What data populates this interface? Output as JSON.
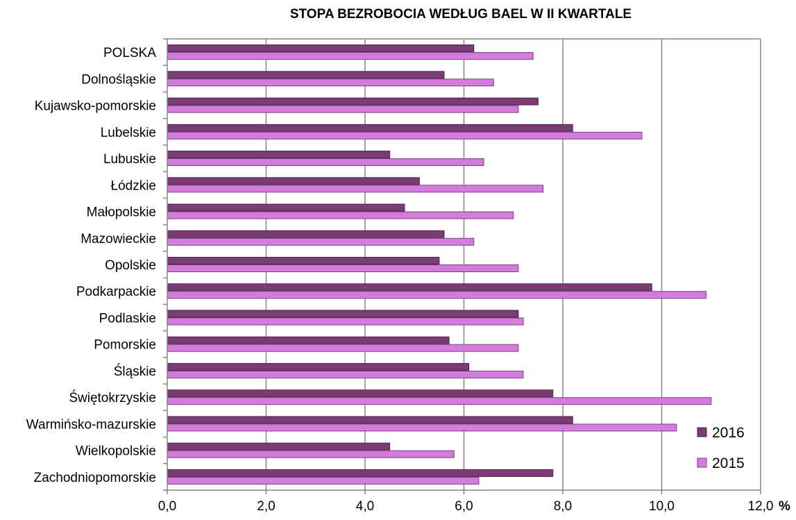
{
  "chart_data": {
    "type": "bar",
    "orientation": "horizontal",
    "title": "STOPA BEZROBOCIA WEDŁUG BAEL W II KWARTALE",
    "xlabel": "%",
    "ylabel": "",
    "xlim": [
      0,
      12
    ],
    "x_ticks": [
      "0,0",
      "2,0",
      "4,0",
      "6,0",
      "8,0",
      "10,0",
      "12,0"
    ],
    "grid": "vertical",
    "legend_position": "bottom-right",
    "categories": [
      "POLSKA",
      "Dolnośląskie",
      "Kujawsko-pomorskie",
      "Lubelskie",
      "Lubuskie",
      "Łódzkie",
      "Małopolskie",
      "Mazowieckie",
      "Opolskie",
      "Podkarpackie",
      "Podlaskie",
      "Pomorskie",
      "Śląskie",
      "Świętokrzyskie",
      "Warmińsko-mazurskie",
      "Wielkopolskie",
      "Zachodniopomorskie"
    ],
    "series": [
      {
        "name": "2016",
        "color": "#7B3B74",
        "values": [
          6.2,
          5.6,
          7.5,
          8.2,
          4.5,
          5.1,
          4.8,
          5.6,
          5.5,
          9.8,
          7.1,
          5.7,
          6.1,
          7.8,
          8.2,
          4.5,
          7.8
        ]
      },
      {
        "name": "2015",
        "color": "#D47CDB",
        "values": [
          7.4,
          6.6,
          7.1,
          9.6,
          6.4,
          7.6,
          7.0,
          6.2,
          7.1,
          10.9,
          7.2,
          7.1,
          7.2,
          11.0,
          10.3,
          5.8,
          6.3
        ]
      }
    ]
  }
}
